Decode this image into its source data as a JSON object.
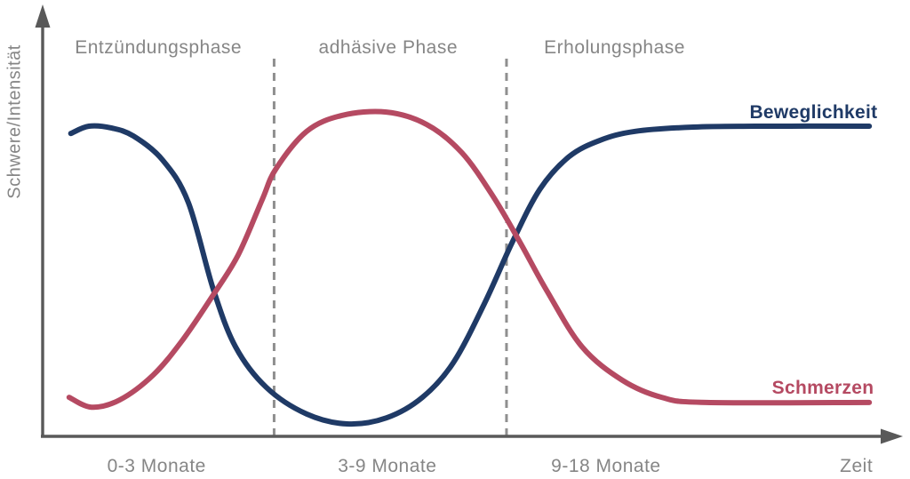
{
  "colors": {
    "axis": "#595959",
    "divider": "#8f8f8f",
    "label_text": "#868686",
    "beweglichkeit": "#1f3a66",
    "schmerzen": "#b54a62"
  },
  "chart_data": {
    "type": "line",
    "title": "",
    "ylabel": "Schwere/Intensität",
    "xlabel": "Zeit",
    "xlabel_t": 95.2,
    "x_note": "t = relative position along schematic time axis (0-100), no numeric scale shown",
    "y_note": "i = qualitative severity/intensity (0-100), no numeric scale shown",
    "ylim": [
      0,
      100
    ],
    "grid": false,
    "legend_position": "inline labels at right end of each curve",
    "dividers_t": [
      27.3,
      54.4
    ],
    "phases": [
      {
        "label": "Entzündungsphase",
        "label_t": 13.8,
        "tick_label": "0-3 Monate",
        "tick_t": 13.6
      },
      {
        "label": "adhäsive Phase",
        "label_t": 40.6,
        "tick_label": "3-9 Monate",
        "tick_t": 40.5
      },
      {
        "label": "Erholungsphase",
        "label_t": 67.0,
        "tick_label": "9-18 Monate",
        "tick_t": 66.0
      }
    ],
    "series": [
      {
        "name": "Beweglichkeit",
        "color": "#1f3a66",
        "label_t": 90.2,
        "label_i": 75.3,
        "points": [
          [
            3.6,
            70.5
          ],
          [
            5.7,
            72.2
          ],
          [
            8.3,
            71.8
          ],
          [
            10.9,
            69.9
          ],
          [
            14.3,
            64.3
          ],
          [
            17.3,
            54.4
          ],
          [
            20.2,
            34.2
          ],
          [
            22.8,
            20.7
          ],
          [
            26.4,
            11.2
          ],
          [
            31.1,
            5.0
          ],
          [
            35.8,
            2.7
          ],
          [
            40.4,
            4.1
          ],
          [
            44.6,
            8.9
          ],
          [
            48.2,
            17.0
          ],
          [
            51.8,
            30.7
          ],
          [
            55.1,
            45.2
          ],
          [
            58.3,
            57.5
          ],
          [
            61.7,
            65.1
          ],
          [
            65.3,
            68.9
          ],
          [
            69.4,
            71.0
          ],
          [
            76.2,
            72.0
          ],
          [
            83.4,
            72.2
          ],
          [
            96.7,
            72.2
          ]
        ]
      },
      {
        "name": "Schmerzen",
        "color": "#b54a62",
        "label_t": 91.3,
        "label_i": 11.0,
        "points": [
          [
            3.4,
            8.9
          ],
          [
            6.0,
            6.6
          ],
          [
            9.3,
            8.3
          ],
          [
            13.2,
            14.1
          ],
          [
            16.6,
            22.2
          ],
          [
            20.2,
            32.8
          ],
          [
            23.1,
            42.1
          ],
          [
            25.9,
            55.0
          ],
          [
            27.5,
            62.2
          ],
          [
            31.1,
            71.0
          ],
          [
            35.2,
            74.7
          ],
          [
            40.4,
            75.5
          ],
          [
            45.1,
            72.6
          ],
          [
            49.2,
            66.0
          ],
          [
            52.9,
            55.6
          ],
          [
            56.0,
            45.0
          ],
          [
            59.1,
            33.8
          ],
          [
            63.2,
            20.7
          ],
          [
            67.9,
            12.9
          ],
          [
            72.5,
            8.9
          ],
          [
            77.7,
            7.7
          ],
          [
            96.7,
            7.7
          ]
        ]
      }
    ]
  }
}
